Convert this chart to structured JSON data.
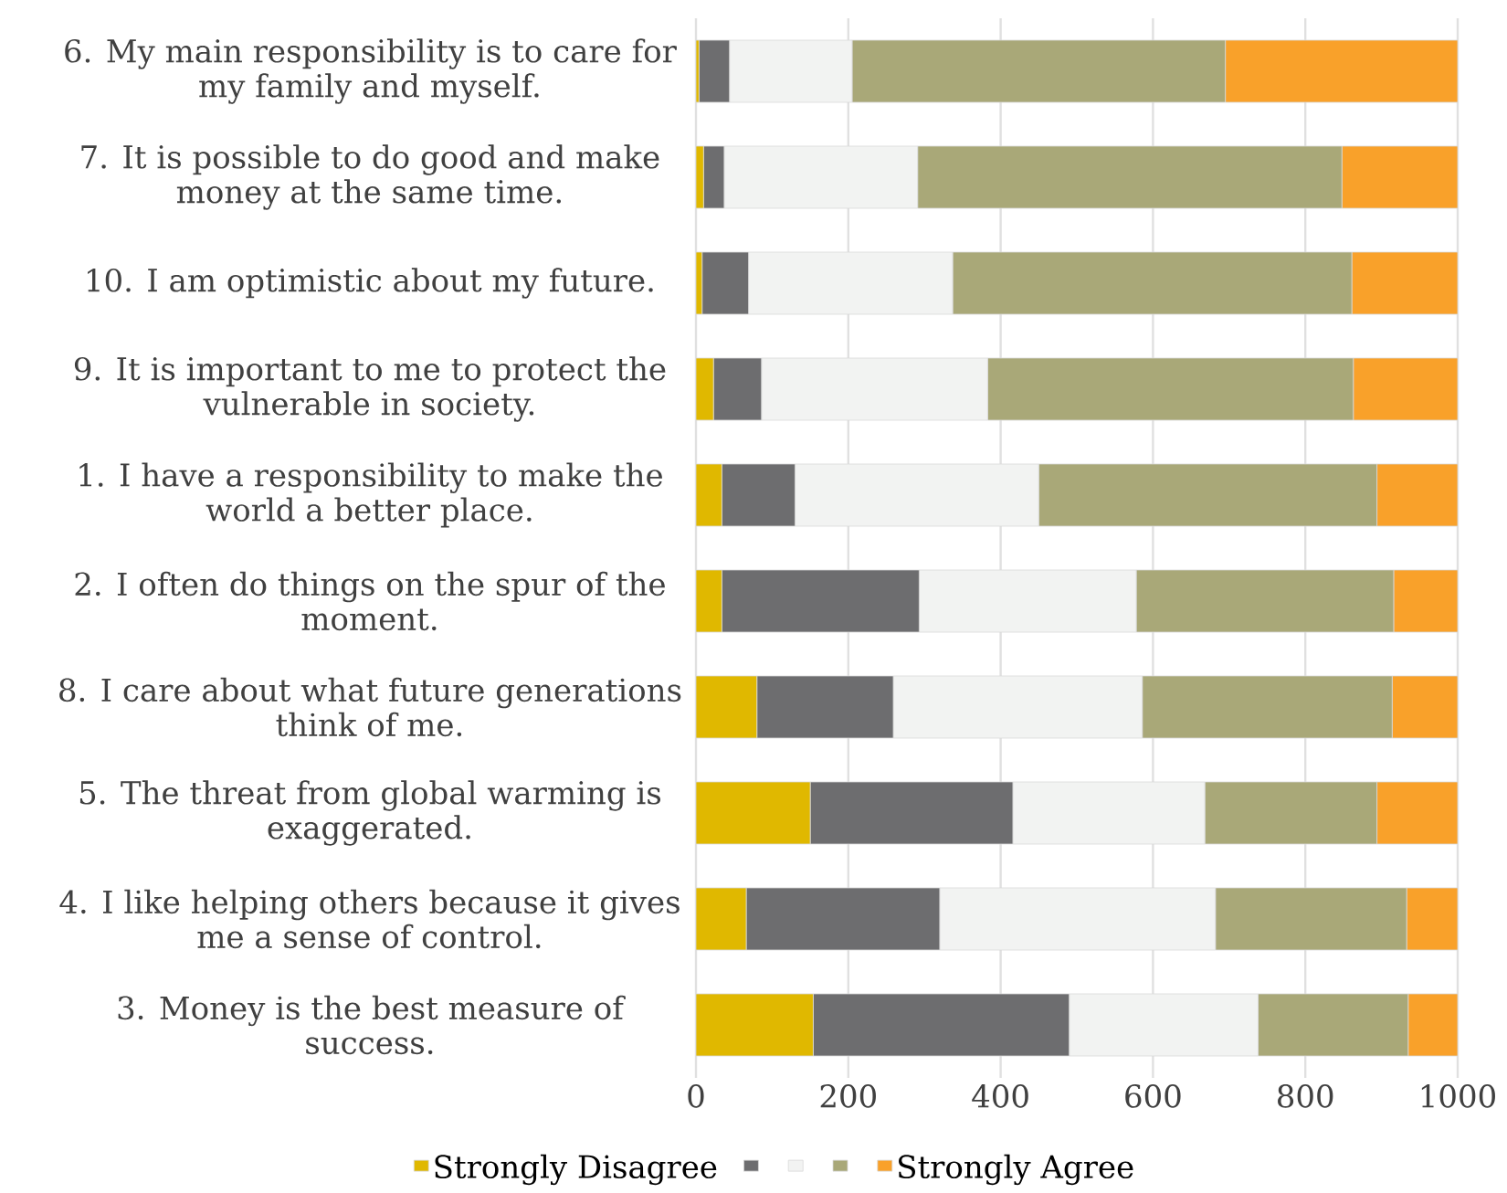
{
  "chart_data": {
    "type": "bar",
    "orientation": "horizontal",
    "stacked": true,
    "categories": [
      "6.  My main responsibility is to care for my family and myself.",
      "7.  It is possible to do good and make money at the same time.",
      "10. I am optimistic about my future.",
      "9.  It is important to me to protect the vulnerable in society.",
      "1.  I have a responsibility to make the world a better place.",
      "2.  I often do things on the spur of the moment.",
      "8.  I care about what future generations think of me.",
      "5.  The threat from global warming is exaggerated.",
      "4.  I like helping others because it gives me a sense of control.",
      "3.  Money is the best measure of success."
    ],
    "series": [
      {
        "name": "Strongly Disagree",
        "color": "#e0b800",
        "values": [
          4,
          10,
          8,
          23,
          34,
          34,
          80,
          150,
          66,
          154
        ]
      },
      {
        "color": "#6d6d6f",
        "values": [
          40,
          27,
          61,
          63,
          96,
          259,
          179,
          266,
          254,
          336
        ]
      },
      {
        "color": "#f2f3f2",
        "values": [
          161,
          254,
          268,
          297,
          320,
          285,
          327,
          252,
          362,
          248
        ]
      },
      {
        "color": "#a9a878",
        "values": [
          490,
          557,
          524,
          480,
          444,
          338,
          328,
          226,
          251,
          197
        ]
      },
      {
        "name": "Strongly Agree",
        "color": "#f9a12a",
        "values": [
          305,
          152,
          139,
          137,
          106,
          84,
          86,
          106,
          67,
          65
        ]
      }
    ],
    "xlim": [
      0,
      1000
    ],
    "xticks": [
      0,
      200,
      400,
      600,
      800,
      1000
    ],
    "grid": "x",
    "legend": "bottom"
  }
}
